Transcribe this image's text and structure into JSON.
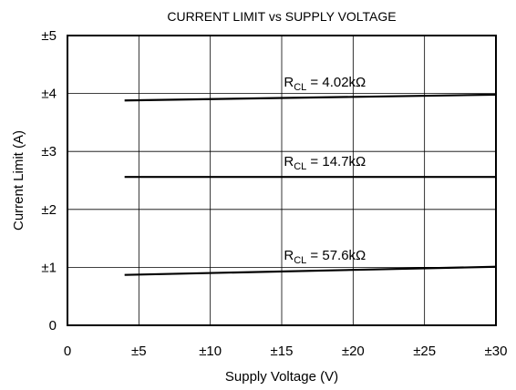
{
  "chart_data": {
    "type": "line",
    "title": "CURRENT LIMIT vs SUPPLY VOLTAGE",
    "xlabel": "Supply Voltage (V)",
    "ylabel": "Current Limit (A)",
    "xlim": [
      0,
      30
    ],
    "ylim": [
      0,
      5
    ],
    "x_ticks": [
      {
        "value": 0,
        "label": "0"
      },
      {
        "value": 5,
        "label": "±5"
      },
      {
        "value": 10,
        "label": "±10"
      },
      {
        "value": 15,
        "label": "±15"
      },
      {
        "value": 20,
        "label": "±20"
      },
      {
        "value": 25,
        "label": "±25"
      },
      {
        "value": 30,
        "label": "±30"
      }
    ],
    "y_ticks": [
      {
        "value": 0,
        "label": "0"
      },
      {
        "value": 1,
        "label": "±1"
      },
      {
        "value": 2,
        "label": "±2"
      },
      {
        "value": 3,
        "label": "±3"
      },
      {
        "value": 4,
        "label": "±4"
      },
      {
        "value": 5,
        "label": "±5"
      }
    ],
    "grid": true,
    "series": [
      {
        "label_main": "R",
        "label_sub": "CL",
        "label_value": " = 4.02kΩ",
        "x": [
          4,
          30
        ],
        "y": [
          3.88,
          3.98
        ]
      },
      {
        "label_main": "R",
        "label_sub": "CL",
        "label_value": " = 14.7kΩ",
        "x": [
          4,
          30
        ],
        "y": [
          2.56,
          2.56
        ]
      },
      {
        "label_main": "R",
        "label_sub": "CL",
        "label_value": " = 57.6kΩ",
        "x": [
          4,
          30
        ],
        "y": [
          0.87,
          1.01
        ]
      }
    ],
    "colors": {
      "line": "#000000",
      "grid": "#000000",
      "background": "#ffffff"
    }
  }
}
